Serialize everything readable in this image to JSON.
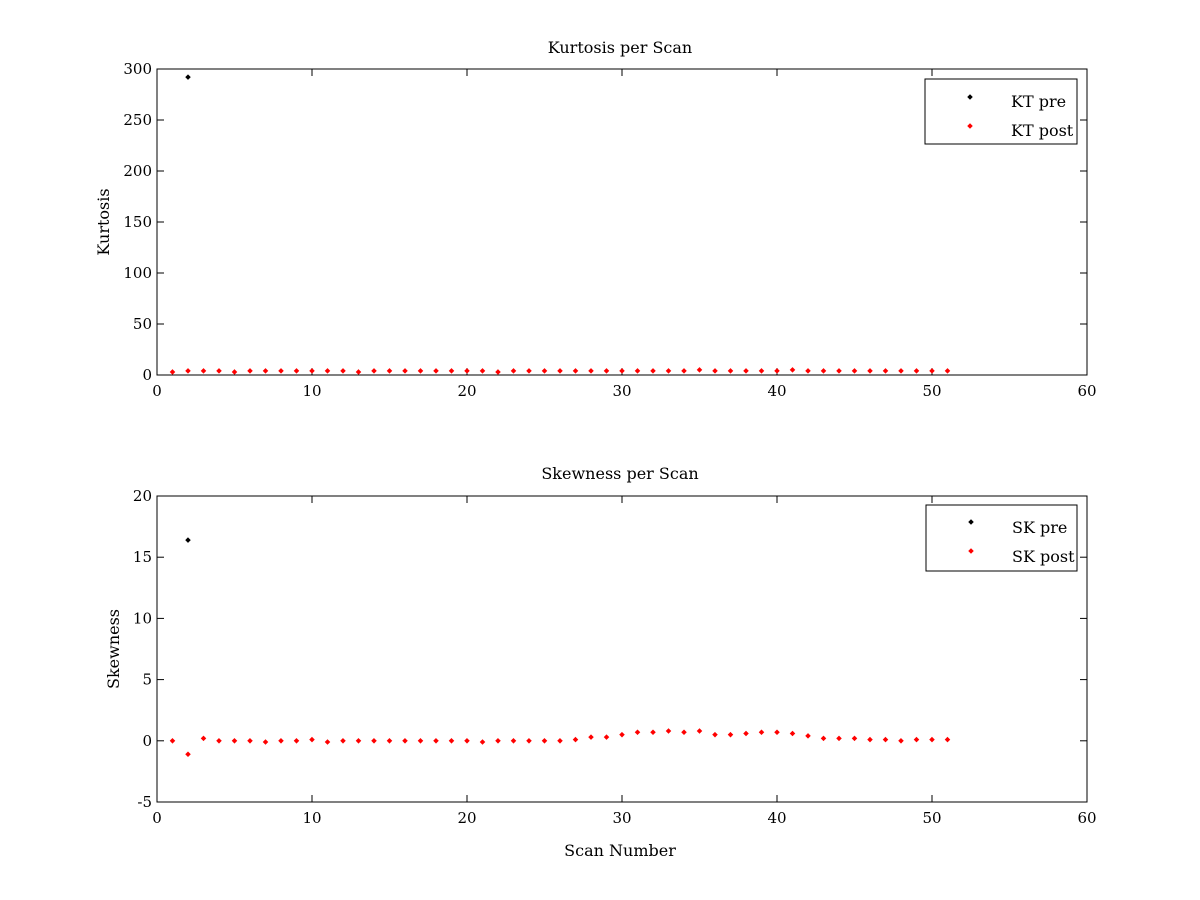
{
  "chart_data": [
    {
      "type": "scatter",
      "title": "Kurtosis per Scan",
      "xlabel": "",
      "ylabel": "Kurtosis",
      "xlim": [
        0,
        60
      ],
      "ylim": [
        0,
        300
      ],
      "xticks": [
        0,
        10,
        20,
        30,
        40,
        50,
        60
      ],
      "yticks": [
        0,
        50,
        100,
        150,
        200,
        250,
        300
      ],
      "grid": false,
      "legend_position": "top-right",
      "series": [
        {
          "name": "KT pre",
          "color": "#000000",
          "x": [
            2
          ],
          "y": [
            292
          ]
        },
        {
          "name": "KT post",
          "color": "#ff0000",
          "x": [
            1,
            2,
            3,
            4,
            5,
            6,
            7,
            8,
            9,
            10,
            11,
            12,
            13,
            14,
            15,
            16,
            17,
            18,
            19,
            20,
            21,
            22,
            23,
            24,
            25,
            26,
            27,
            28,
            29,
            30,
            31,
            32,
            33,
            34,
            35,
            36,
            37,
            38,
            39,
            40,
            41,
            42,
            43,
            44,
            45,
            46,
            47,
            48,
            49,
            50,
            51
          ],
          "y": [
            3,
            4,
            4,
            4,
            3,
            4,
            4,
            4,
            4,
            4,
            4,
            4,
            3,
            4,
            4,
            4,
            4,
            4,
            4,
            4,
            4,
            3,
            4,
            4,
            4,
            4,
            4,
            4,
            4,
            4,
            4,
            4,
            4,
            4,
            5,
            4,
            4,
            4,
            4,
            4,
            5,
            4,
            4,
            4,
            4,
            4,
            4,
            4,
            4,
            4,
            4
          ]
        }
      ]
    },
    {
      "type": "scatter",
      "title": "Skewness per Scan",
      "xlabel": "Scan Number",
      "ylabel": "Skewness",
      "xlim": [
        0,
        60
      ],
      "ylim": [
        -5,
        20
      ],
      "xticks": [
        0,
        10,
        20,
        30,
        40,
        50,
        60
      ],
      "yticks": [
        -5,
        0,
        5,
        10,
        15,
        20
      ],
      "grid": false,
      "legend_position": "top-right",
      "series": [
        {
          "name": "SK pre",
          "color": "#000000",
          "x": [
            2
          ],
          "y": [
            16.4
          ]
        },
        {
          "name": "SK post",
          "color": "#ff0000",
          "x": [
            1,
            2,
            3,
            4,
            5,
            6,
            7,
            8,
            9,
            10,
            11,
            12,
            13,
            14,
            15,
            16,
            17,
            18,
            19,
            20,
            21,
            22,
            23,
            24,
            25,
            26,
            27,
            28,
            29,
            30,
            31,
            32,
            33,
            34,
            35,
            36,
            37,
            38,
            39,
            40,
            41,
            42,
            43,
            44,
            45,
            46,
            47,
            48,
            49,
            50,
            51
          ],
          "y": [
            0.0,
            -1.1,
            0.2,
            0.0,
            0.0,
            0.0,
            -0.1,
            0.0,
            0.0,
            0.1,
            -0.1,
            0.0,
            0.0,
            0.0,
            0.0,
            0.0,
            0.0,
            0.0,
            0.0,
            0.0,
            -0.1,
            0.0,
            0.0,
            0.0,
            0.0,
            0.0,
            0.1,
            0.3,
            0.3,
            0.5,
            0.7,
            0.7,
            0.8,
            0.7,
            0.8,
            0.5,
            0.5,
            0.6,
            0.7,
            0.7,
            0.6,
            0.4,
            0.2,
            0.2,
            0.2,
            0.1,
            0.1,
            0.0,
            0.1,
            0.1,
            0.1
          ]
        }
      ]
    }
  ]
}
